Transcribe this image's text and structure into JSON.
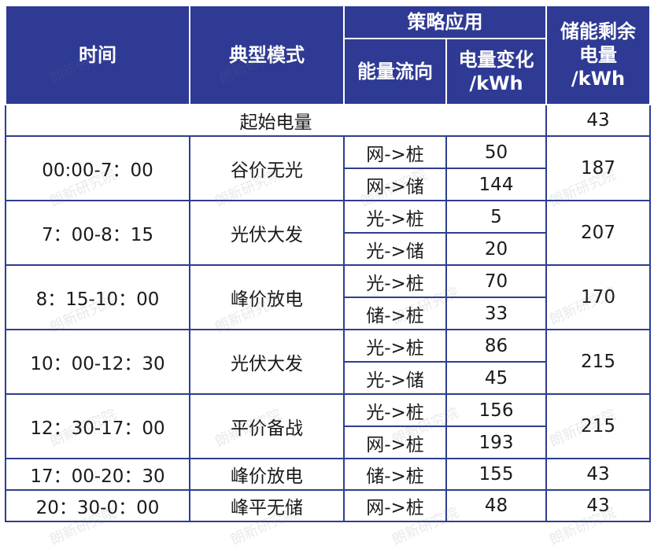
{
  "header": {
    "time": "时间",
    "mode": "典型模式",
    "strategy": "策略应用",
    "flow": "能量流向",
    "change_l1": "电量变化",
    "change_l2": "/kWh",
    "remain_l1": "储能剩余",
    "remain_l2": "电量",
    "remain_l3": "/kWh"
  },
  "initial": {
    "label": "起始电量",
    "value": "43"
  },
  "rows": [
    {
      "time": "00:00-7：00",
      "mode": "谷价无光",
      "remain": "187",
      "flows": [
        {
          "dir": "网->桩",
          "val": "50"
        },
        {
          "dir": "网->储",
          "val": "144"
        }
      ]
    },
    {
      "time": "7：00-8：15",
      "mode": "光伏大发",
      "remain": "207",
      "flows": [
        {
          "dir": "光->桩",
          "val": "5"
        },
        {
          "dir": "光->储",
          "val": "20"
        }
      ]
    },
    {
      "time": "8：15-10：00",
      "mode": "峰价放电",
      "remain": "170",
      "flows": [
        {
          "dir": "光->桩",
          "val": "70"
        },
        {
          "dir": "储->桩",
          "val": "33"
        }
      ]
    },
    {
      "time": "10：00-12：30",
      "mode": "光伏大发",
      "remain": "215",
      "flows": [
        {
          "dir": "光->桩",
          "val": "86"
        },
        {
          "dir": "光->储",
          "val": "45"
        }
      ]
    },
    {
      "time": "12：30-17：00",
      "mode": "平价备战",
      "remain": "215",
      "flows": [
        {
          "dir": "光->桩",
          "val": "156"
        },
        {
          "dir": "网->桩",
          "val": "193"
        }
      ]
    },
    {
      "time": "17：00-20：30",
      "mode": "峰价放电",
      "remain": "43",
      "flows": [
        {
          "dir": "储->桩",
          "val": "155"
        }
      ]
    },
    {
      "time": "20：30-0：00",
      "mode": "峰平无储",
      "remain": "43",
      "flows": [
        {
          "dir": "网->桩",
          "val": "48"
        }
      ]
    }
  ],
  "watermark": "朗新研究院"
}
